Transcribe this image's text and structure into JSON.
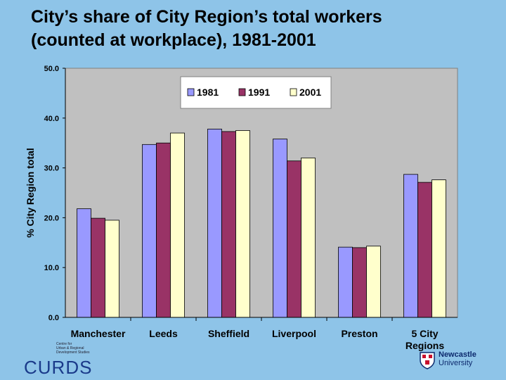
{
  "title_line1": "City’s share of City Region’s total workers",
  "title_line2": "(counted at workplace), 1981-2001",
  "chart_data": {
    "type": "bar",
    "categories": [
      "Manchester",
      "Leeds",
      "Sheffield",
      "Liverpool",
      "Preston",
      "5 City Regions"
    ],
    "category_lines": [
      [
        "Manchester"
      ],
      [
        "Leeds"
      ],
      [
        "Sheffield"
      ],
      [
        "Liverpool"
      ],
      [
        "Preston"
      ],
      [
        "5 City",
        "Regions"
      ]
    ],
    "series": [
      {
        "name": "1981",
        "color": "#9999ff",
        "values": [
          21.8,
          34.7,
          37.8,
          35.8,
          14.1,
          28.7
        ]
      },
      {
        "name": "1991",
        "color": "#993366",
        "values": [
          19.9,
          35.0,
          37.3,
          31.4,
          14.0,
          27.1
        ]
      },
      {
        "name": "2001",
        "color": "#ffffcc",
        "values": [
          19.5,
          37.0,
          37.5,
          32.0,
          14.3,
          27.6
        ]
      }
    ],
    "ylabel": "% City Region total",
    "ylim": [
      0,
      50
    ],
    "yticks": [
      "0.0",
      "10.0",
      "20.0",
      "30.0",
      "40.0",
      "50.0"
    ],
    "grid": false,
    "legend_position": "top",
    "plot_background": "#c0c0c0"
  },
  "logo_left": {
    "small_lines": [
      "Centre for",
      "Urban & Regional",
      "Development Studies"
    ],
    "big": "CURDS"
  },
  "logo_right": {
    "line1": "Newcastle",
    "line2": "University"
  }
}
